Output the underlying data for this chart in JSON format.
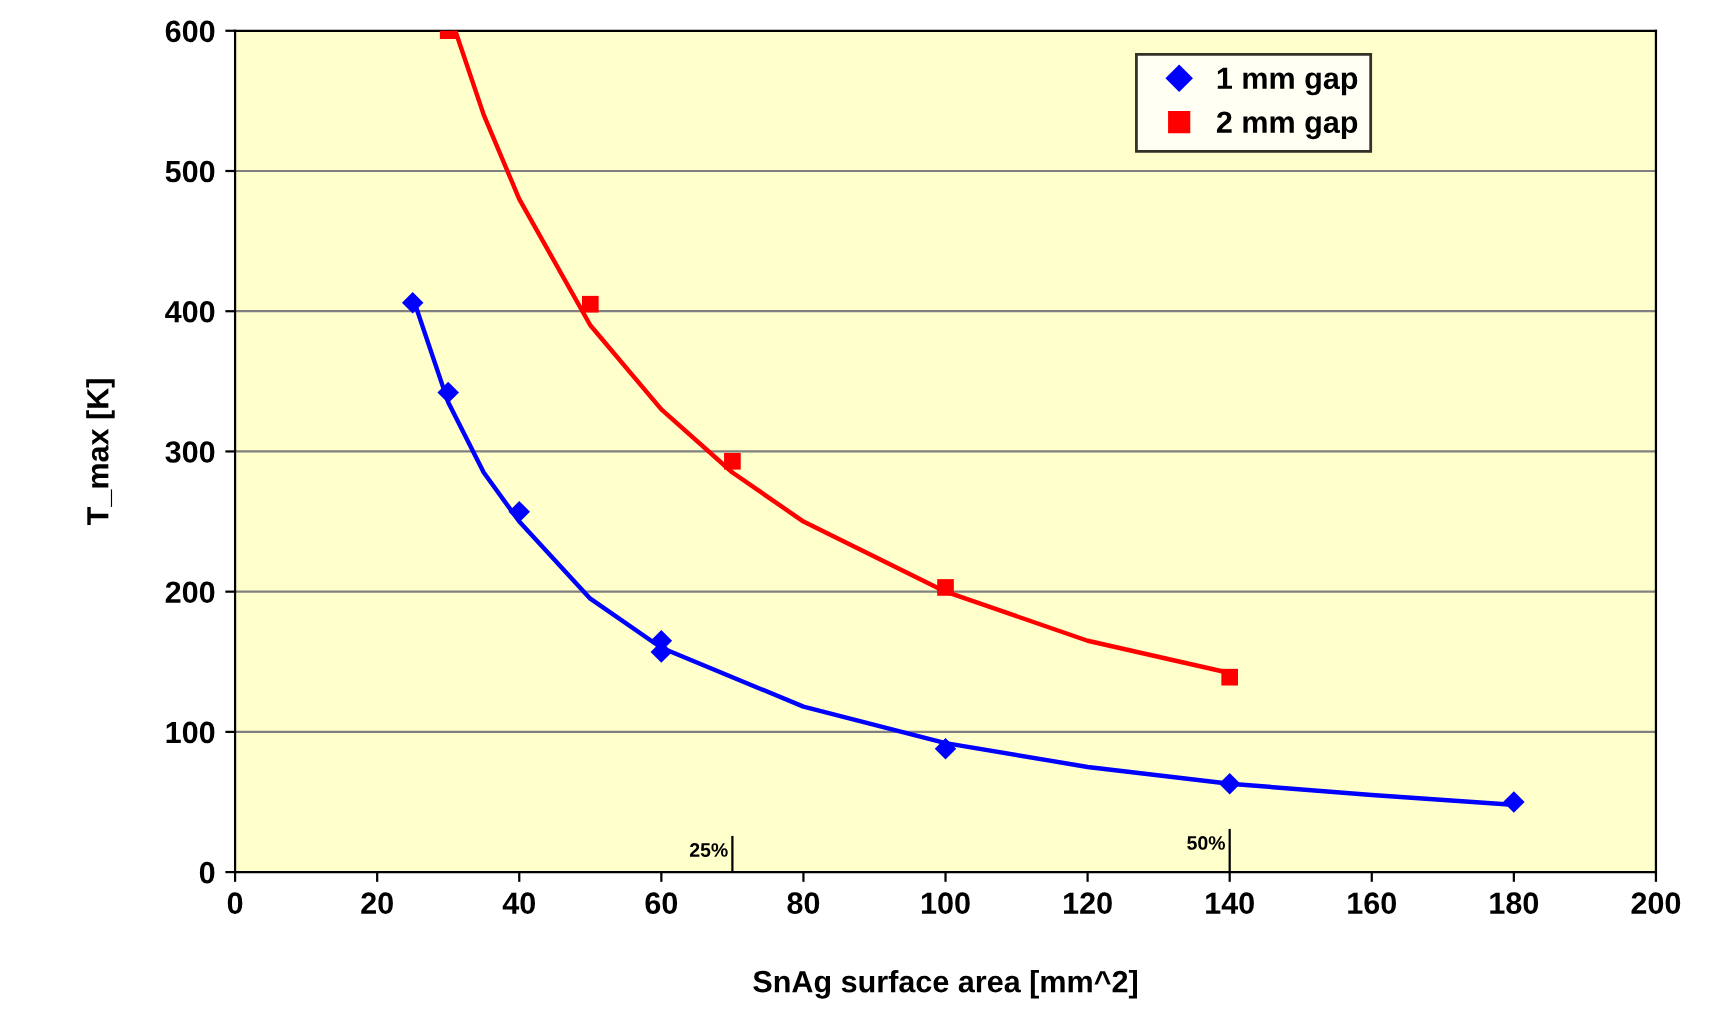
{
  "chart_data": {
    "type": "scatter",
    "xlabel": "SnAg surface area [mm^2]",
    "ylabel": "T_max [K]",
    "xlim": [
      0,
      200
    ],
    "xticks": [
      0,
      20,
      40,
      60,
      80,
      100,
      120,
      140,
      160,
      180,
      200
    ],
    "ylim": [
      0,
      600
    ],
    "yticks": [
      0,
      100,
      200,
      300,
      400,
      500,
      600
    ],
    "grid": "y",
    "legend": "top right",
    "series": [
      {
        "name": "1 mm gap",
        "color": "#0000ff",
        "marker": "diamond",
        "x": [
          25,
          30,
          40,
          60,
          60,
          100,
          140,
          180
        ],
        "values": [
          406,
          342,
          257,
          165,
          157,
          88,
          63,
          50
        ]
      },
      {
        "name": "2 mm gap",
        "color": "#ff0000",
        "marker": "square",
        "x": [
          30,
          50,
          70,
          100,
          140
        ],
        "values": [
          600,
          405,
          293,
          203,
          139
        ]
      },
      {
        "type": "line",
        "color": "#0000ff",
        "x": [
          25,
          30,
          35,
          40,
          50,
          60,
          80,
          100,
          120,
          140,
          160,
          180
        ],
        "values": [
          410,
          335,
          285,
          250,
          195,
          160,
          118,
          92,
          75,
          63,
          55,
          48
        ]
      },
      {
        "type": "line",
        "color": "#ff0000",
        "x": [
          31,
          35,
          40,
          50,
          60,
          70,
          80,
          100,
          120,
          140
        ],
        "values": [
          600,
          540,
          480,
          390,
          330,
          285,
          250,
          200,
          165,
          142
        ]
      },
      {
        "type": "line",
        "color": "#000000",
        "x": [
          70,
          70
        ],
        "values": [
          0,
          25
        ]
      },
      {
        "type": "line",
        "color": "#000000",
        "x": [
          140,
          140
        ],
        "values": [
          0,
          30
        ]
      }
    ],
    "annotations": [
      {
        "text": "25%",
        "x": 70,
        "y": 25
      },
      {
        "text": "50%",
        "x": 140,
        "y": 30
      }
    ]
  }
}
